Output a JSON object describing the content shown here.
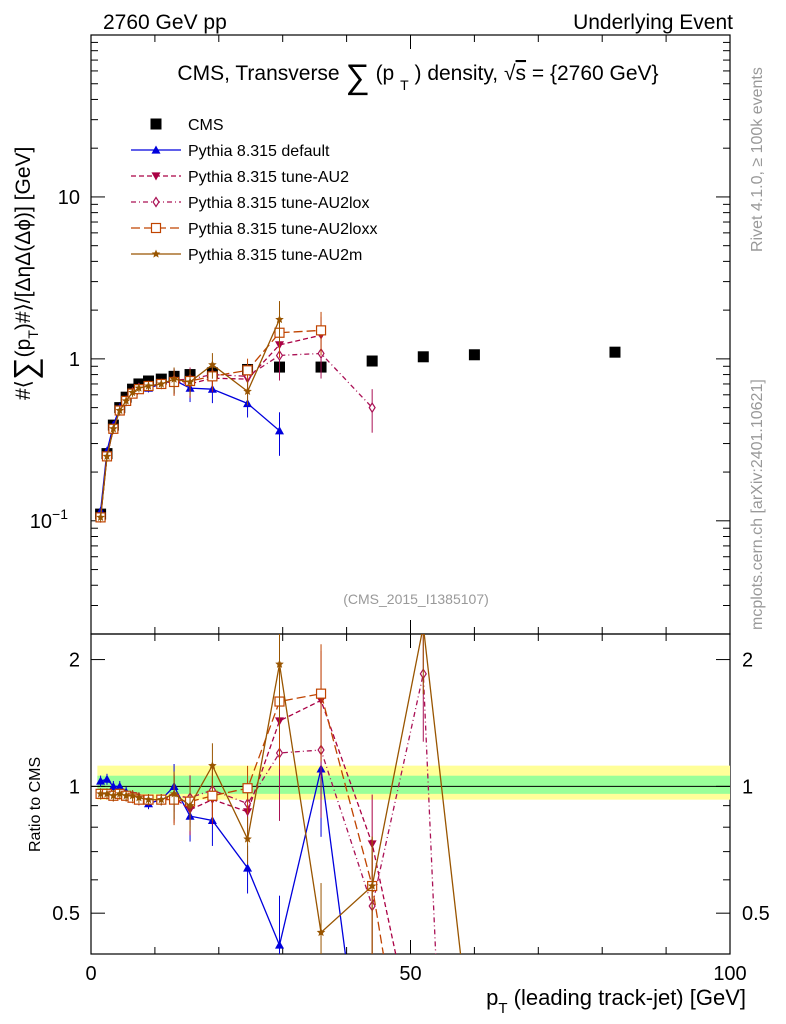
{
  "header": {
    "left": "2760 GeV pp",
    "right": "Underlying Event"
  },
  "title": {
    "prefix": "CMS, Transverse",
    "inner": "(p",
    "sub": "T",
    "suffix": ") density,",
    "sqrt": "s",
    "energy": "= {2760 GeV}"
  },
  "side": {
    "rivet": "Rivet 4.1.0, ≥ 100k events",
    "mcplots": "mcplots.cern.ch [arXiv:2401.10621]"
  },
  "analysis_ref": "(CMS_2015_I1385107)",
  "colors": {
    "cms": "#000000",
    "default": "#0000dd",
    "au2": "#aa0044",
    "au2lox": "#aa1155",
    "au2loxx": "#c04400",
    "au2m": "#995500",
    "band_outer": "#ffff99",
    "band_inner": "#99ff99"
  },
  "chart_data": [
    {
      "type": "line",
      "panel": "main",
      "title": "CMS, Transverse Σ(pT) density, √s = {2760 GeV}",
      "ylabel": "#⟨Σ(pT)#⟩/[ΔηΔ(Δφ)] [GeV]",
      "xlabel": "pT (leading track-jet) [GeV]",
      "yscale": "log",
      "xlim": [
        0,
        100
      ],
      "ylim": [
        0.02,
        100
      ],
      "yticks": [
        {
          "v": 0.1,
          "label": "10",
          "exp": "−1"
        },
        {
          "v": 1,
          "label": "1"
        },
        {
          "v": 10,
          "label": "10"
        }
      ],
      "legend_position": "top-left",
      "series": [
        {
          "key": "cms",
          "name": "CMS",
          "marker": "square",
          "line": "none",
          "x": [
            1.5,
            2.5,
            3.5,
            4.5,
            5.5,
            6.5,
            7.5,
            9.0,
            11.0,
            13.0,
            15.5,
            19.0,
            24.5,
            29.5,
            36.0,
            44.0,
            52.0,
            60.0,
            82.0
          ],
          "y": [
            0.11,
            0.26,
            0.39,
            0.5,
            0.58,
            0.65,
            0.7,
            0.73,
            0.75,
            0.78,
            0.8,
            0.82,
            0.86,
            0.89,
            0.89,
            0.97,
            1.03,
            1.06,
            1.1
          ]
        },
        {
          "key": "default",
          "name": "Pythia 8.315 default",
          "marker": "triangle",
          "line": "solid",
          "x": [
            1.5,
            2.5,
            3.5,
            4.5,
            5.5,
            6.5,
            7.5,
            9.0,
            11.0,
            13.0,
            15.5,
            19.0,
            24.5,
            29.5
          ],
          "y": [
            0.115,
            0.27,
            0.39,
            0.5,
            0.56,
            0.62,
            0.65,
            0.66,
            0.7,
            0.74,
            0.66,
            0.65,
            0.53,
            0.36
          ]
        },
        {
          "key": "au2",
          "name": "Pythia 8.315 tune-AU2",
          "marker": "triangle-down",
          "line": "dashed",
          "x": [
            1.5,
            2.5,
            3.5,
            4.5,
            5.5,
            6.5,
            7.5,
            9.0,
            11.0,
            13.0,
            15.5,
            19.0,
            24.5,
            29.5,
            36.0
          ],
          "y": [
            0.105,
            0.25,
            0.37,
            0.48,
            0.55,
            0.62,
            0.65,
            0.68,
            0.7,
            0.73,
            0.7,
            0.76,
            0.75,
            1.22,
            1.4
          ]
        },
        {
          "key": "au2lox",
          "name": "Pythia 8.315 tune-AU2lox",
          "marker": "diamond",
          "line": "dashdot",
          "x": [
            1.5,
            2.5,
            3.5,
            4.5,
            5.5,
            6.5,
            7.5,
            9.0,
            11.0,
            13.0,
            15.5,
            19.0,
            24.5,
            29.5,
            36.0,
            44.0
          ],
          "y": [
            0.105,
            0.25,
            0.37,
            0.48,
            0.55,
            0.62,
            0.66,
            0.68,
            0.7,
            0.74,
            0.75,
            0.8,
            0.78,
            1.05,
            1.08,
            0.5
          ]
        },
        {
          "key": "au2loxx",
          "name": "Pythia 8.315 tune-AU2loxx",
          "marker": "square-open",
          "line": "longdash",
          "x": [
            1.5,
            2.5,
            3.5,
            4.5,
            5.5,
            6.5,
            7.5,
            9.0,
            11.0,
            13.0,
            15.5,
            19.0,
            24.5,
            29.5,
            36.0
          ],
          "y": [
            0.105,
            0.25,
            0.37,
            0.48,
            0.55,
            0.61,
            0.65,
            0.68,
            0.7,
            0.72,
            0.73,
            0.78,
            0.85,
            1.45,
            1.5
          ]
        },
        {
          "key": "au2m",
          "name": "Pythia 8.315 tune-AU2m",
          "marker": "star",
          "line": "solid",
          "x": [
            1.5,
            2.5,
            3.5,
            4.5,
            5.5,
            6.5,
            7.5,
            9.0,
            11.0,
            13.0,
            15.5,
            19.0,
            24.5,
            29.5
          ],
          "y": [
            0.105,
            0.25,
            0.37,
            0.48,
            0.55,
            0.62,
            0.66,
            0.68,
            0.7,
            0.75,
            0.72,
            0.92,
            0.63,
            1.75
          ]
        }
      ]
    },
    {
      "type": "line",
      "panel": "ratio",
      "ylabel": "Ratio to CMS",
      "yscale": "log",
      "xlim": [
        0,
        100
      ],
      "ylim": [
        0.4,
        2.3
      ],
      "xticks": [
        {
          "v": 0,
          "label": "0"
        },
        {
          "v": 50,
          "label": "50"
        },
        {
          "v": 100,
          "label": "100"
        }
      ],
      "yticks": [
        {
          "v": 0.5,
          "label": "0.5"
        },
        {
          "v": 1,
          "label": "1"
        },
        {
          "v": 2,
          "label": "2"
        }
      ],
      "band_outer": [
        0.93,
        1.12
      ],
      "band_inner": [
        0.96,
        1.06
      ],
      "series": [
        {
          "key": "default",
          "x": [
            1.5,
            2.5,
            3.5,
            4.5,
            5.5,
            6.5,
            7.5,
            9.0,
            11.0,
            13.0,
            15.5,
            19.0,
            24.5,
            29.5,
            36.0,
            40.0
          ],
          "y": [
            1.03,
            1.04,
            1.0,
            1.0,
            0.97,
            0.95,
            0.93,
            0.91,
            0.93,
            1.0,
            0.85,
            0.83,
            0.64,
            0.42,
            1.1,
            0.38
          ]
        },
        {
          "key": "au2",
          "x": [
            1.5,
            2.5,
            3.5,
            4.5,
            5.5,
            6.5,
            7.5,
            9.0,
            11.0,
            13.0,
            15.5,
            19.0,
            24.5,
            29.5,
            36.0,
            44.0,
            48.0
          ],
          "y": [
            0.96,
            0.96,
            0.95,
            0.96,
            0.95,
            0.95,
            0.93,
            0.93,
            0.93,
            0.94,
            0.88,
            0.93,
            0.87,
            1.43,
            1.6,
            0.73,
            0.38
          ]
        },
        {
          "key": "au2lox",
          "x": [
            1.5,
            2.5,
            3.5,
            4.5,
            5.5,
            6.5,
            7.5,
            9.0,
            11.0,
            13.0,
            15.5,
            19.0,
            24.5,
            29.5,
            36.0,
            44.0,
            52.0,
            54.0
          ],
          "y": [
            0.96,
            0.96,
            0.95,
            0.96,
            0.95,
            0.95,
            0.94,
            0.93,
            0.93,
            0.95,
            0.94,
            0.98,
            0.91,
            1.2,
            1.22,
            0.52,
            1.85,
            0.38
          ]
        },
        {
          "key": "au2loxx",
          "x": [
            1.5,
            2.5,
            3.5,
            4.5,
            5.5,
            6.5,
            7.5,
            9.0,
            11.0,
            13.0,
            15.5,
            19.0,
            24.5,
            29.5,
            36.0,
            44.0,
            46.0
          ],
          "y": [
            0.96,
            0.96,
            0.95,
            0.96,
            0.95,
            0.94,
            0.93,
            0.93,
            0.93,
            0.93,
            0.92,
            0.95,
            0.99,
            1.59,
            1.66,
            0.58,
            0.38
          ]
        },
        {
          "key": "au2m",
          "x": [
            1.5,
            2.5,
            3.5,
            4.5,
            5.5,
            6.5,
            7.5,
            9.0,
            11.0,
            13.0,
            15.5,
            19.0,
            24.5,
            29.5,
            36.0,
            44.0,
            52.0,
            58.0
          ],
          "y": [
            0.96,
            0.96,
            0.95,
            0.96,
            0.95,
            0.95,
            0.94,
            0.93,
            0.93,
            0.96,
            0.9,
            1.12,
            0.75,
            1.95,
            0.45,
            0.58,
            2.4,
            0.38
          ]
        }
      ]
    }
  ]
}
